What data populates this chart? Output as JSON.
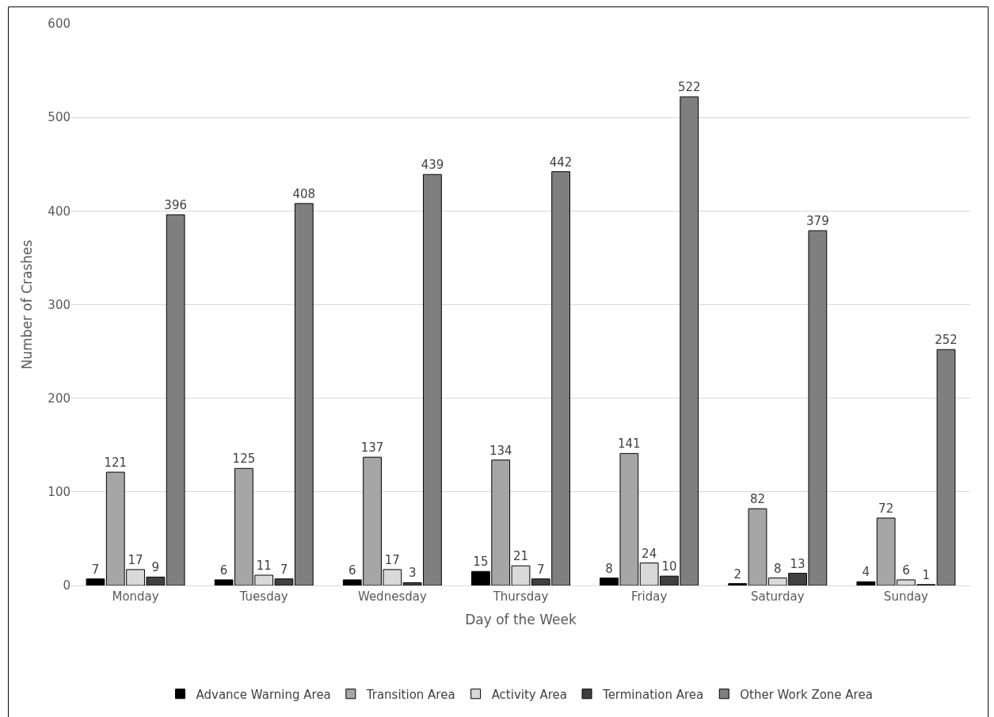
{
  "chart_data": {
    "type": "bar",
    "xlabel": "Day of the Week",
    "ylabel": "Number of Crashes",
    "categories": [
      "Monday",
      "Tuesday",
      "Wednesday",
      "Thursday",
      "Friday",
      "Saturday",
      "Sunday"
    ],
    "series": [
      {
        "name": "Advance Warning Area",
        "color": "#000000",
        "values": [
          7,
          6,
          6,
          15,
          8,
          2,
          4
        ]
      },
      {
        "name": "Transition Area",
        "color": "#a6a6a6",
        "values": [
          121,
          125,
          137,
          134,
          141,
          82,
          72
        ]
      },
      {
        "name": "Activity Area",
        "color": "#d9d9d9",
        "values": [
          17,
          11,
          17,
          21,
          24,
          8,
          6
        ]
      },
      {
        "name": "Termination Area",
        "color": "#404040",
        "values": [
          9,
          7,
          3,
          7,
          10,
          13,
          1
        ]
      },
      {
        "name": "Other Work Zone Area",
        "color": "#7f7f7f",
        "values": [
          396,
          408,
          439,
          442,
          522,
          379,
          252
        ]
      }
    ],
    "ylim": [
      0,
      600
    ],
    "yticks": [
      0,
      100,
      200,
      300,
      400,
      500,
      600
    ],
    "grid": "y",
    "legend": "bottom",
    "data_labels": true
  }
}
